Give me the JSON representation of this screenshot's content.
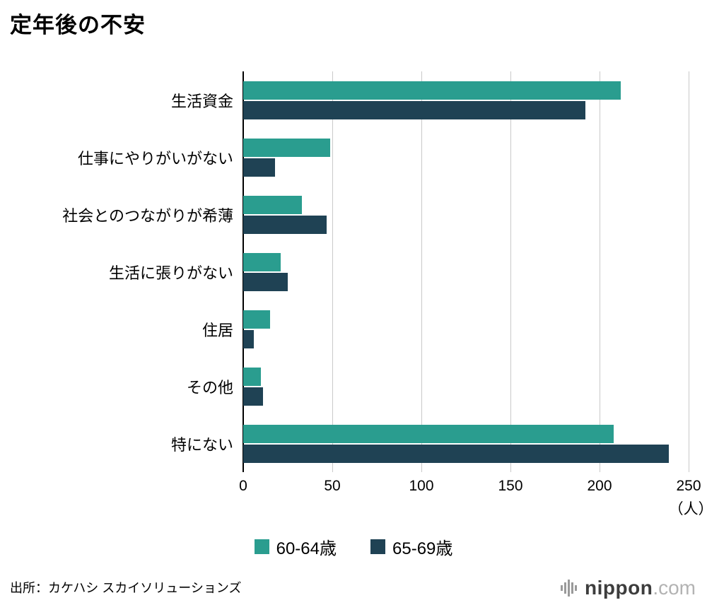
{
  "title": "定年後の不安",
  "source": "出所：カケハシ スカイソリューションズ",
  "logo": {
    "name": "nippon",
    "suffix": ".com"
  },
  "colors": {
    "series1": "#2a9d8f",
    "series2": "#1f4254",
    "grid": "#c9c9c9",
    "axis": "#000000"
  },
  "chart_data": {
    "type": "bar",
    "orientation": "horizontal",
    "title": "定年後の不安",
    "categories": [
      "生活資金",
      "仕事にやりがいがない",
      "社会とのつながりが希薄",
      "生活に張りがない",
      "住居",
      "その他",
      "特にない"
    ],
    "series": [
      {
        "name": "60-64歳",
        "color": "#2a9d8f",
        "values": [
          212,
          49,
          33,
          21,
          15,
          10,
          208
        ]
      },
      {
        "name": "65-69歳",
        "color": "#1f4254",
        "values": [
          192,
          18,
          47,
          25,
          6,
          11,
          239
        ]
      }
    ],
    "xlim": [
      0,
      250
    ],
    "xticks": [
      0,
      50,
      100,
      150,
      200,
      250
    ],
    "x_unit": "（人）",
    "grid": true,
    "legend_position": "bottom"
  }
}
